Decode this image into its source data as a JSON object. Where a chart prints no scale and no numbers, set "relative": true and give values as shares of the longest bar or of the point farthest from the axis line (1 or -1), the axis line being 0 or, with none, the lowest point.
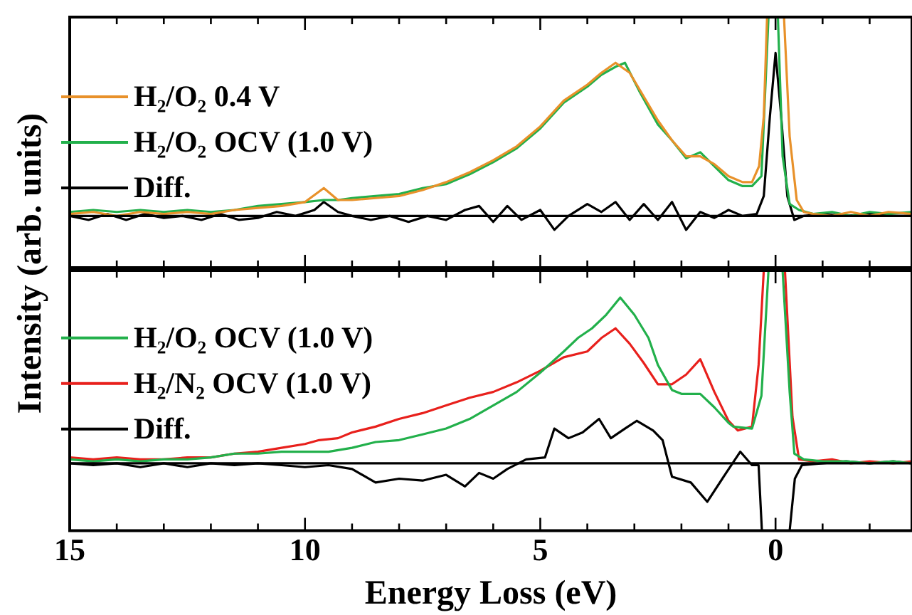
{
  "chart_data": [
    {
      "type": "line",
      "relative": true,
      "xlim": [
        15,
        -2.9
      ],
      "xticks": [
        15,
        {
          "value": 14,
          "label": null
        },
        {
          "value": 13,
          "label": null
        },
        {
          "value": 12,
          "label": null
        },
        {
          "value": 11,
          "label": null
        },
        10,
        {
          "value": 9,
          "label": null
        },
        {
          "value": 8,
          "label": null
        },
        {
          "value": 7,
          "label": null
        },
        {
          "value": 6,
          "label": null
        },
        5,
        {
          "value": 4,
          "label": null
        },
        {
          "value": 3,
          "label": null
        },
        {
          "value": 2,
          "label": null
        },
        {
          "value": 1,
          "label": null
        },
        0,
        {
          "value": -1,
          "label": null
        },
        {
          "value": -2,
          "label": null
        }
      ],
      "tick_labels": false,
      "legend": "left",
      "grid": false,
      "marker": "none",
      "line_style": "solid",
      "ref_lines": [
        {
          "axis": "y",
          "value": 0,
          "color": "#000000"
        }
      ],
      "series": [
        {
          "name": "H₂/O₂ 0.4 V",
          "color": "#e8912a",
          "x": [
            15,
            14.5,
            14,
            13.5,
            13,
            12.5,
            12,
            11.5,
            11,
            10.5,
            10,
            9.6,
            9.3,
            9,
            8.5,
            8,
            7.5,
            7,
            6.5,
            6,
            5.5,
            5,
            4.5,
            4,
            3.7,
            3.4,
            3.1,
            2.8,
            2.5,
            2.2,
            1.9,
            1.6,
            1.3,
            1.0,
            0.7,
            0.5,
            0.35,
            0.25,
            0.18,
            -0.18,
            -0.3,
            -0.45,
            -0.6,
            -0.8,
            -1.2,
            -1.6,
            -2,
            -2.4,
            -2.9
          ],
          "values": [
            0.01,
            0.02,
            0.0,
            0.02,
            0.01,
            0.02,
            0.01,
            0.03,
            0.04,
            0.05,
            0.07,
            0.14,
            0.08,
            0.08,
            0.09,
            0.1,
            0.13,
            0.17,
            0.22,
            0.28,
            0.35,
            0.45,
            0.58,
            0.66,
            0.72,
            0.77,
            0.72,
            0.6,
            0.48,
            0.38,
            0.3,
            0.3,
            0.26,
            0.2,
            0.17,
            0.17,
            0.25,
            0.5,
            1,
            1,
            0.4,
            0.08,
            0.02,
            0.01,
            0.0,
            0.02,
            0.0,
            0.02,
            0.01
          ]
        },
        {
          "name": "H₂/O₂ OCV (1.0 V)",
          "color": "#22b04b",
          "x": [
            15,
            14.5,
            14,
            13.5,
            13,
            12.5,
            12,
            11.5,
            11,
            10.5,
            10,
            9.6,
            9.3,
            9,
            8.5,
            8,
            7.5,
            7,
            6.5,
            6,
            5.5,
            5,
            4.5,
            4,
            3.7,
            3.4,
            3.2,
            2.9,
            2.5,
            2.2,
            1.9,
            1.6,
            1.3,
            1.0,
            0.7,
            0.5,
            0.3,
            0.15,
            -0.05,
            -0.15,
            -0.3,
            -0.5,
            -0.8,
            -1.2,
            -1.6,
            -2,
            -2.4,
            -2.9
          ],
          "values": [
            0.02,
            0.03,
            0.02,
            0.03,
            0.02,
            0.03,
            0.02,
            0.03,
            0.05,
            0.06,
            0.07,
            0.08,
            0.08,
            0.09,
            0.1,
            0.11,
            0.14,
            0.16,
            0.21,
            0.27,
            0.34,
            0.44,
            0.57,
            0.65,
            0.71,
            0.75,
            0.77,
            0.63,
            0.46,
            0.38,
            0.29,
            0.32,
            0.25,
            0.18,
            0.15,
            0.15,
            0.2,
            1,
            1,
            0.3,
            0.06,
            0.03,
            0.01,
            0.02,
            0.0,
            0.02,
            0.01,
            0.02
          ]
        },
        {
          "name": "Diff.",
          "color": "#000000",
          "x": [
            15,
            14.6,
            14.2,
            13.8,
            13.4,
            13,
            12.6,
            12.2,
            11.8,
            11.4,
            11,
            10.6,
            10.2,
            9.8,
            9.6,
            9.3,
            9,
            8.6,
            8.2,
            7.8,
            7.4,
            7,
            6.6,
            6.3,
            6.0,
            5.7,
            5.4,
            5.0,
            4.7,
            4.4,
            4.0,
            3.7,
            3.4,
            3.1,
            2.8,
            2.5,
            2.2,
            1.9,
            1.6,
            1.3,
            1.0,
            0.7,
            0.4,
            0.25,
            0.12,
            0,
            -0.12,
            -0.25,
            -0.4,
            -0.6,
            -1,
            -1.5,
            -2,
            -2.5,
            -2.9
          ],
          "values": [
            0.0,
            -0.02,
            0.01,
            -0.02,
            0.01,
            -0.01,
            0.0,
            -0.02,
            0.01,
            -0.02,
            -0.01,
            0.02,
            0.0,
            0.03,
            0.07,
            0.02,
            0.0,
            -0.02,
            0.0,
            -0.03,
            0.0,
            -0.02,
            0.03,
            0.05,
            -0.03,
            0.05,
            -0.02,
            0.03,
            -0.07,
            0.0,
            0.06,
            0.02,
            0.07,
            -0.02,
            0.06,
            -0.02,
            0.07,
            -0.07,
            0.02,
            -0.01,
            0.03,
            0.0,
            0.01,
            0.1,
            0.5,
            0.82,
            0.5,
            0.1,
            -0.02,
            0.0,
            0.01,
            0.0,
            0.01,
            0.0,
            0.0
          ]
        }
      ]
    },
    {
      "type": "line",
      "relative": true,
      "xlabel": "Energy Loss (eV)",
      "ylabel": "Intensity (arb. units)",
      "xlim": [
        15,
        -2.9
      ],
      "xticks": [
        15,
        {
          "value": 14,
          "label": null
        },
        {
          "value": 13,
          "label": null
        },
        {
          "value": 12,
          "label": null
        },
        {
          "value": 11,
          "label": null
        },
        10,
        {
          "value": 9,
          "label": null
        },
        {
          "value": 8,
          "label": null
        },
        {
          "value": 7,
          "label": null
        },
        {
          "value": 6,
          "label": null
        },
        5,
        {
          "value": 4,
          "label": null
        },
        {
          "value": 3,
          "label": null
        },
        {
          "value": 2,
          "label": null
        },
        {
          "value": 1,
          "label": null
        },
        0,
        {
          "value": -1,
          "label": null
        },
        {
          "value": -2,
          "label": null
        }
      ],
      "tick_labels": "x",
      "legend": "left",
      "grid": false,
      "marker": "none",
      "line_style": "solid",
      "ref_lines": [
        {
          "axis": "y",
          "value": 0,
          "color": "#000000"
        }
      ],
      "series": [
        {
          "name": "H₂/O₂ OCV (1.0 V)",
          "color": "#22b04b",
          "x": [
            15,
            14.5,
            14,
            13.5,
            13,
            12.5,
            12,
            11.5,
            11,
            10.5,
            10,
            9.5,
            9,
            8.5,
            8,
            7.5,
            7,
            6.5,
            6,
            5.5,
            5,
            4.5,
            4.2,
            3.9,
            3.6,
            3.3,
            3.0,
            2.7,
            2.5,
            2.2,
            2.0,
            1.6,
            1.3,
            1.0,
            0.9,
            0.5,
            0.3,
            0.15,
            -0.15,
            -0.3,
            -0.4,
            -0.6,
            -1,
            -1.5,
            -2,
            -2.5,
            -2.9
          ],
          "values": [
            0.02,
            0.01,
            0.02,
            0.01,
            0.02,
            0.02,
            0.03,
            0.05,
            0.05,
            0.06,
            0.06,
            0.06,
            0.08,
            0.11,
            0.12,
            0.15,
            0.18,
            0.23,
            0.3,
            0.37,
            0.47,
            0.58,
            0.65,
            0.7,
            0.77,
            0.86,
            0.77,
            0.65,
            0.51,
            0.38,
            0.36,
            0.36,
            0.29,
            0.21,
            0.19,
            0.18,
            0.35,
            1,
            1,
            0.37,
            0.05,
            0.02,
            0.01,
            0.01,
            0.0,
            0.01,
            0.0
          ]
        },
        {
          "name": "H₂/N₂ OCV (1.0 V)",
          "color": "#e8201c",
          "x": [
            15,
            14.5,
            14,
            13.5,
            13,
            12.5,
            12,
            11.5,
            11,
            10.5,
            10,
            9.7,
            9.3,
            9,
            8.5,
            8,
            7.5,
            7,
            6.5,
            6,
            5.5,
            5,
            4.5,
            4.0,
            3.7,
            3.4,
            3.1,
            2.8,
            2.5,
            2.2,
            1.9,
            1.6,
            1.3,
            1.0,
            0.8,
            0.5,
            0.36,
            0.25,
            -0.2,
            -0.36,
            -0.5,
            -0.8,
            -1.2,
            -1.6,
            -2,
            -2.5,
            -2.9
          ],
          "values": [
            0.03,
            0.02,
            0.03,
            0.02,
            0.02,
            0.03,
            0.03,
            0.05,
            0.06,
            0.08,
            0.1,
            0.12,
            0.13,
            0.16,
            0.19,
            0.23,
            0.26,
            0.3,
            0.34,
            0.37,
            0.42,
            0.48,
            0.55,
            0.58,
            0.65,
            0.7,
            0.62,
            0.52,
            0.41,
            0.41,
            0.46,
            0.54,
            0.37,
            0.22,
            0.17,
            0.19,
            0.51,
            1,
            1,
            0.24,
            0.02,
            0.01,
            0.02,
            0.0,
            0.01,
            0.0,
            0.01
          ]
        },
        {
          "name": "Diff.",
          "color": "#000000",
          "x": [
            15,
            14.5,
            14,
            13.5,
            13,
            12.5,
            12,
            11.5,
            11,
            10.5,
            10,
            9.5,
            9,
            8.5,
            8,
            7.5,
            7,
            6.6,
            6.3,
            6.0,
            5.7,
            5.3,
            4.9,
            4.7,
            4.4,
            4.1,
            3.75,
            3.5,
            3.2,
            2.95,
            2.6,
            2.4,
            2.2,
            1.8,
            1.45,
            1.05,
            0.75,
            0.5,
            0.36,
            0.29,
            -0.3,
            -0.41,
            -0.56,
            -1,
            -1.5,
            -2,
            -2.5,
            -2.9
          ],
          "values": [
            0.0,
            -0.01,
            0.0,
            -0.02,
            0.0,
            -0.02,
            0.0,
            -0.01,
            0.0,
            -0.01,
            -0.02,
            -0.01,
            -0.03,
            -0.1,
            -0.08,
            -0.09,
            -0.06,
            -0.12,
            -0.05,
            -0.08,
            -0.03,
            0.02,
            0.03,
            0.18,
            0.13,
            0.16,
            0.23,
            0.13,
            0.18,
            0.22,
            0.17,
            0.12,
            -0.07,
            -0.1,
            -0.2,
            -0.05,
            0.06,
            -0.01,
            -0.01,
            -0.35,
            -0.35,
            -0.08,
            -0.01,
            0.0,
            0.01,
            0.0,
            0.01,
            0.0
          ]
        }
      ]
    }
  ]
}
